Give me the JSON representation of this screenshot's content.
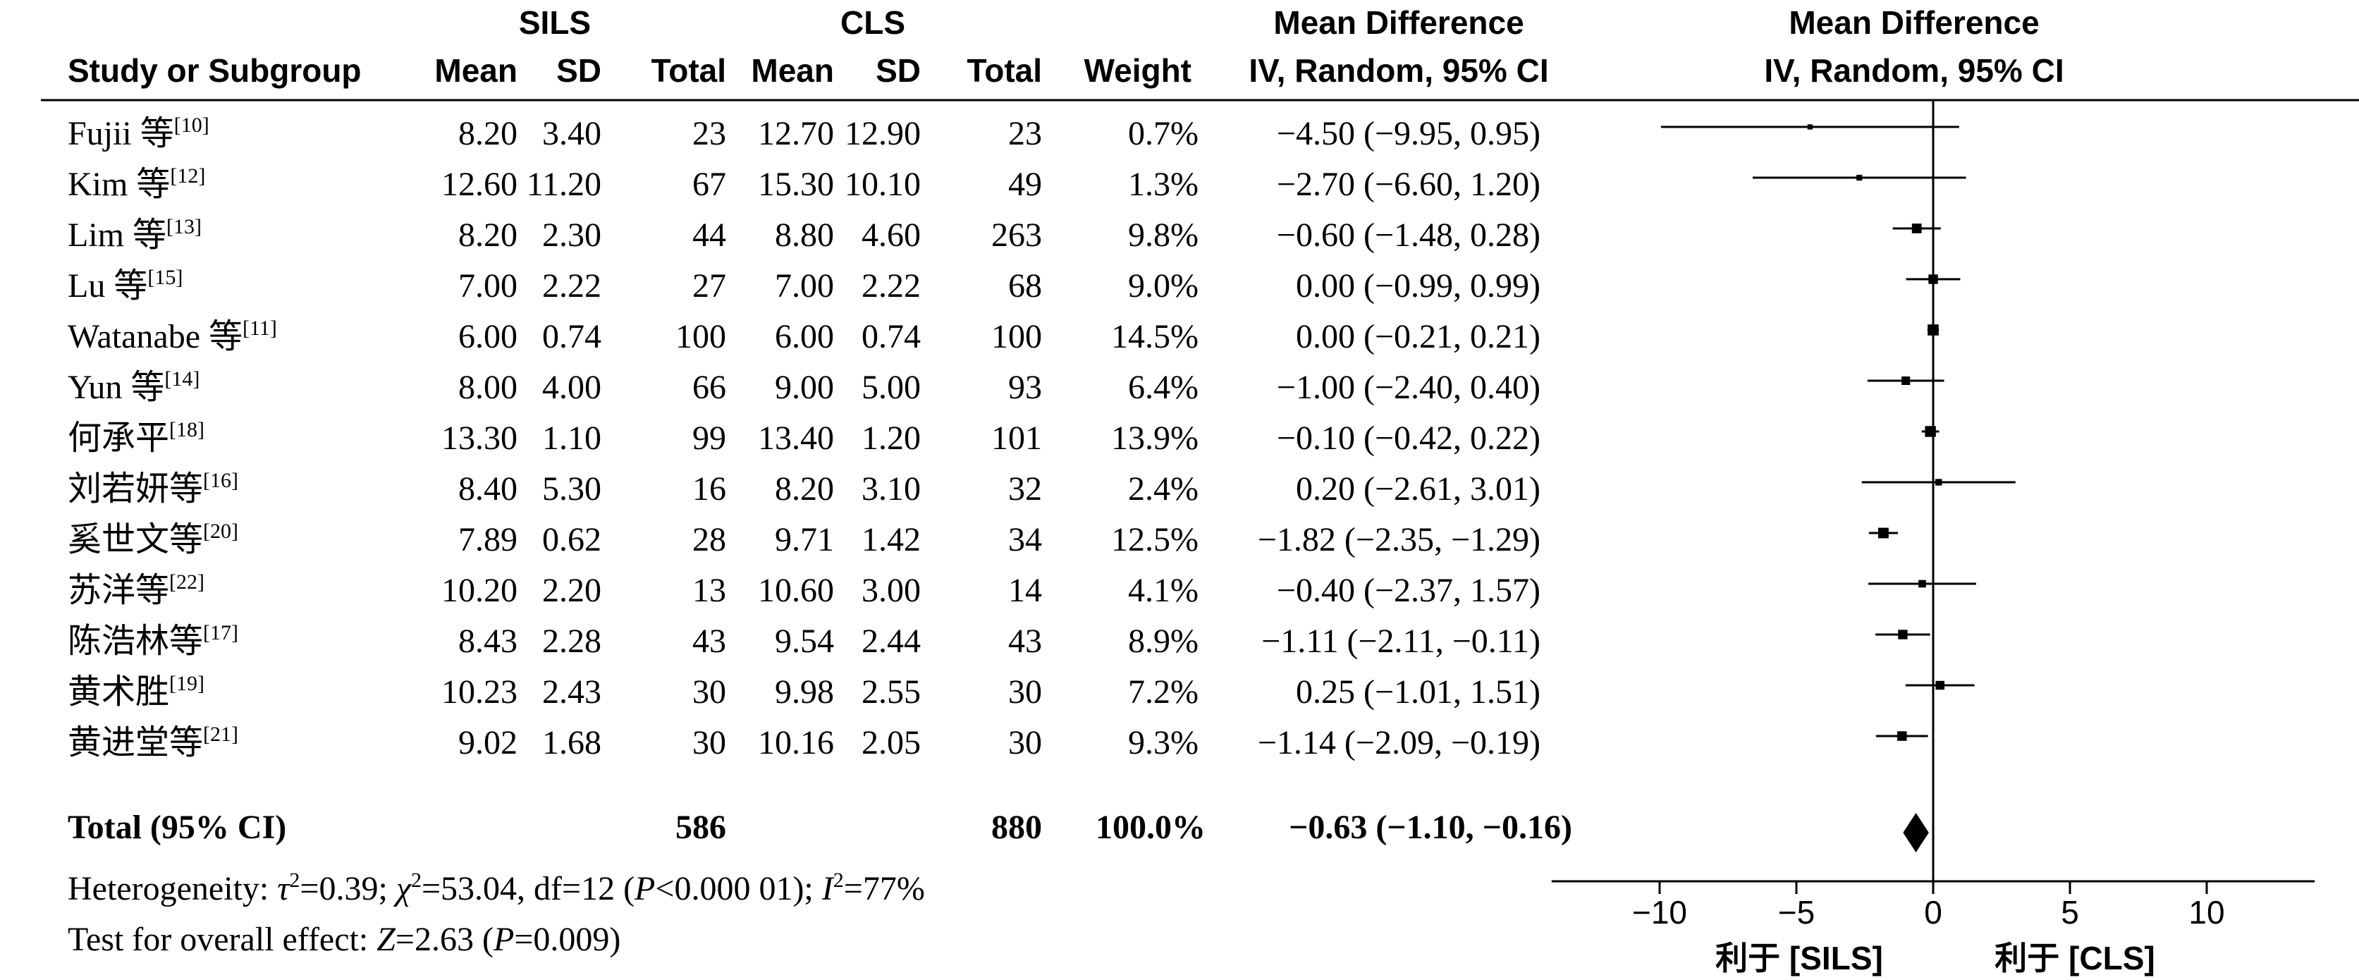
{
  "header": {
    "group1": "SILS",
    "group2": "CLS",
    "mean_diff_title": "Mean Difference",
    "study_col": "Study or Subgroup",
    "mean": "Mean",
    "sd": "SD",
    "total": "Total",
    "weight": "Weight",
    "method": "IV, Random, 95% CI"
  },
  "studies": [
    {
      "name": "Fujii 等",
      "ref": "[10]",
      "m1": "8.20",
      "sd1": "3.40",
      "n1": "23",
      "m2": "12.70",
      "sd2": "12.90",
      "n2": "23",
      "weight": "0.7%",
      "ci": "−4.50 (−9.95, 0.95)"
    },
    {
      "name": "Kim 等",
      "ref": "[12]",
      "m1": "12.60",
      "sd1": "11.20",
      "n1": "67",
      "m2": "15.30",
      "sd2": "10.10",
      "n2": "49",
      "weight": "1.3%",
      "ci": "−2.70 (−6.60, 1.20)"
    },
    {
      "name": "Lim 等",
      "ref": "[13]",
      "m1": "8.20",
      "sd1": "2.30",
      "n1": "44",
      "m2": "8.80",
      "sd2": "4.60",
      "n2": "263",
      "weight": "9.8%",
      "ci": "−0.60 (−1.48, 0.28)"
    },
    {
      "name": "Lu 等",
      "ref": "[15]",
      "m1": "7.00",
      "sd1": "2.22",
      "n1": "27",
      "m2": "7.00",
      "sd2": "2.22",
      "n2": "68",
      "weight": "9.0%",
      "ci": "0.00 (−0.99, 0.99)"
    },
    {
      "name": "Watanabe 等",
      "ref": "[11]",
      "m1": "6.00",
      "sd1": "0.74",
      "n1": "100",
      "m2": "6.00",
      "sd2": "0.74",
      "n2": "100",
      "weight": "14.5%",
      "ci": "0.00 (−0.21, 0.21)"
    },
    {
      "name": "Yun 等",
      "ref": "[14]",
      "m1": "8.00",
      "sd1": "4.00",
      "n1": "66",
      "m2": "9.00",
      "sd2": "5.00",
      "n2": "93",
      "weight": "6.4%",
      "ci": "−1.00 (−2.40, 0.40)"
    },
    {
      "name": "何承平",
      "ref": "[18]",
      "m1": "13.30",
      "sd1": "1.10",
      "n1": "99",
      "m2": "13.40",
      "sd2": "1.20",
      "n2": "101",
      "weight": "13.9%",
      "ci": "−0.10 (−0.42, 0.22)"
    },
    {
      "name": "刘若妍等",
      "ref": "[16]",
      "m1": "8.40",
      "sd1": "5.30",
      "n1": "16",
      "m2": "8.20",
      "sd2": "3.10",
      "n2": "32",
      "weight": "2.4%",
      "ci": "0.20 (−2.61, 3.01)"
    },
    {
      "name": "奚世文等",
      "ref": "[20]",
      "m1": "7.89",
      "sd1": "0.62",
      "n1": "28",
      "m2": "9.71",
      "sd2": "1.42",
      "n2": "34",
      "weight": "12.5%",
      "ci": "−1.82 (−2.35, −1.29)"
    },
    {
      "name": "苏洋等",
      "ref": "[22]",
      "m1": "10.20",
      "sd1": "2.20",
      "n1": "13",
      "m2": "10.60",
      "sd2": "3.00",
      "n2": "14",
      "weight": "4.1%",
      "ci": "−0.40 (−2.37, 1.57)"
    },
    {
      "name": "陈浩林等",
      "ref": "[17]",
      "m1": "8.43",
      "sd1": "2.28",
      "n1": "43",
      "m2": "9.54",
      "sd2": "2.44",
      "n2": "43",
      "weight": "8.9%",
      "ci": "−1.11 (−2.11, −0.11)"
    },
    {
      "name": "黄术胜",
      "ref": "[19]",
      "m1": "10.23",
      "sd1": "2.43",
      "n1": "30",
      "m2": "9.98",
      "sd2": "2.55",
      "n2": "30",
      "weight": "7.2%",
      "ci": "0.25 (−1.01, 1.51)"
    },
    {
      "name": "黄进堂等",
      "ref": "[21]",
      "m1": "9.02",
      "sd1": "1.68",
      "n1": "30",
      "m2": "10.16",
      "sd2": "2.05",
      "n2": "30",
      "weight": "9.3%",
      "ci": "−1.14 (−2.09, −0.19)"
    }
  ],
  "total": {
    "label": "Total (95% CI)",
    "n1": "586",
    "n2": "880",
    "weight": "100.0%",
    "ci": "−0.63 (−1.10, −0.16)"
  },
  "heterogeneity": {
    "prefix": "Heterogeneity: ",
    "tau": "τ",
    "tau_val": "=0.39; ",
    "chi": "χ",
    "chi_val": "=53.04, df=12 (",
    "p": "P",
    "p_val": "<0.000 01); ",
    "i": "I",
    "i_val": "=77%"
  },
  "overall": {
    "prefix": "Test for overall effect: ",
    "z": "Z",
    "z_val": "=2.63 (",
    "p": "P",
    "p_val": "=0.009)"
  },
  "axis": {
    "favours_left": "利于 [SILS]",
    "favours_right": "利于 [CLS]"
  },
  "chart_data": {
    "type": "forest",
    "x": {
      "ticks": [
        -10,
        -5,
        0,
        5,
        10
      ],
      "range": [
        -14,
        14
      ]
    },
    "series": [
      {
        "label": "Fujii 等",
        "md": -4.5,
        "lo": -9.95,
        "hi": 0.95,
        "weight": 0.7
      },
      {
        "label": "Kim 等",
        "md": -2.7,
        "lo": -6.6,
        "hi": 1.2,
        "weight": 1.3
      },
      {
        "label": "Lim 等",
        "md": -0.6,
        "lo": -1.48,
        "hi": 0.28,
        "weight": 9.8
      },
      {
        "label": "Lu 等",
        "md": 0.0,
        "lo": -0.99,
        "hi": 0.99,
        "weight": 9.0
      },
      {
        "label": "Watanabe 等",
        "md": 0.0,
        "lo": -0.21,
        "hi": 0.21,
        "weight": 14.5
      },
      {
        "label": "Yun 等",
        "md": -1.0,
        "lo": -2.4,
        "hi": 0.4,
        "weight": 6.4
      },
      {
        "label": "何承平",
        "md": -0.1,
        "lo": -0.42,
        "hi": 0.22,
        "weight": 13.9
      },
      {
        "label": "刘若妍等",
        "md": 0.2,
        "lo": -2.61,
        "hi": 3.01,
        "weight": 2.4
      },
      {
        "label": "奚世文等",
        "md": -1.82,
        "lo": -2.35,
        "hi": -1.29,
        "weight": 12.5
      },
      {
        "label": "苏洋等",
        "md": -0.4,
        "lo": -2.37,
        "hi": 1.57,
        "weight": 4.1
      },
      {
        "label": "陈浩林等",
        "md": -1.11,
        "lo": -2.11,
        "hi": -0.11,
        "weight": 8.9
      },
      {
        "label": "黄术胜",
        "md": 0.25,
        "lo": -1.01,
        "hi": 1.51,
        "weight": 7.2
      },
      {
        "label": "黄进堂等",
        "md": -1.14,
        "lo": -2.09,
        "hi": -0.19,
        "weight": 9.3
      }
    ],
    "pooled": {
      "md": -0.63,
      "lo": -1.1,
      "hi": -0.16
    }
  }
}
